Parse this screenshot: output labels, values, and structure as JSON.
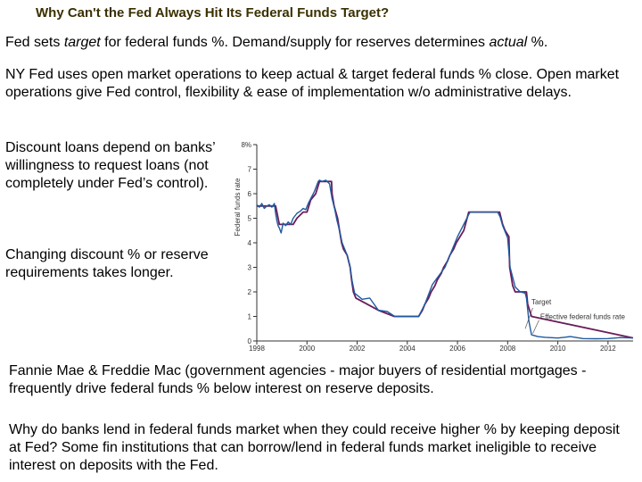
{
  "slide": {
    "title": "Why Can't the Fed Always Hit Its Federal Funds Target?",
    "p1": {
      "a": "Fed sets ",
      "b": "target",
      "c": " for federal funds %. Demand/supply for reserves determines ",
      "d": "actual",
      "e": " %."
    },
    "p2": "NY Fed uses open market operations to keep actual & target federal funds % close. Open market operations give Fed control, flexibility & ease of implementation w/o administrative delays.",
    "p3": "Discount loans depend on banks’ willingness to request loans (not completely under Fed’s control).",
    "p4": "Changing discount % or reserve requirements takes longer.",
    "p5": "Fannie Mae & Freddie Mac (government agencies - major buyers of residential mortgages - frequently drive federal funds % below interest on reserve deposits.",
    "p6": "Why do banks lend in federal funds market when they could receive higher % by keeping deposit at Fed? Some fin institutions that can borrow/lend in federal funds market ineligible to receive interest on deposits with the Fed."
  },
  "chart_data": {
    "type": "line",
    "ylabel": "Federal funds rate",
    "ylim": [
      0,
      8
    ],
    "xlim": [
      1998,
      2013
    ],
    "y_ticks": [
      {
        "v": 0,
        "label": "0"
      },
      {
        "v": 1,
        "label": "1"
      },
      {
        "v": 2,
        "label": "2"
      },
      {
        "v": 3,
        "label": "3"
      },
      {
        "v": 4,
        "label": "4"
      },
      {
        "v": 5,
        "label": "5"
      },
      {
        "v": 6,
        "label": "6"
      },
      {
        "v": 7,
        "label": "7"
      },
      {
        "v": 8,
        "label": "8%"
      }
    ],
    "x_ticks": [
      {
        "v": 1998,
        "label": "1998"
      },
      {
        "v": 2000,
        "label": "2000"
      },
      {
        "v": 2002,
        "label": "2002"
      },
      {
        "v": 2004,
        "label": "2004"
      },
      {
        "v": 2006,
        "label": "2006"
      },
      {
        "v": 2008,
        "label": "2008"
      },
      {
        "v": 2010,
        "label": "2010"
      },
      {
        "v": 2012,
        "label": "2012"
      }
    ],
    "grid": false,
    "series": [
      {
        "name": "Target",
        "color": "#6a1d5a",
        "x": [
          1998.0,
          1998.75,
          1998.8,
          1998.85,
          1998.9,
          1999.45,
          1999.6,
          1999.85,
          2000.0,
          2000.15,
          2000.35,
          2000.5,
          2000.98,
          2001.0,
          2001.08,
          2001.22,
          2001.3,
          2001.38,
          2001.45,
          2001.6,
          2001.72,
          2001.78,
          2001.85,
          2001.95,
          2002.85,
          2003.48,
          2004.45,
          2004.6,
          2004.7,
          2004.85,
          2004.95,
          2005.1,
          2005.2,
          2005.35,
          2005.45,
          2005.6,
          2005.7,
          2005.85,
          2005.95,
          2006.1,
          2006.25,
          2006.45,
          2007.68,
          2007.8,
          2007.9,
          2008.05,
          2008.08,
          2008.2,
          2008.3,
          2008.75,
          2008.8,
          2008.95,
          2013.0
        ],
        "values": [
          5.5,
          5.5,
          5.25,
          5.0,
          4.75,
          4.75,
          5.0,
          5.25,
          5.25,
          5.75,
          6.0,
          6.5,
          6.5,
          6.0,
          5.5,
          5.0,
          4.5,
          4.0,
          3.75,
          3.5,
          3.0,
          2.5,
          2.0,
          1.75,
          1.25,
          1.0,
          1.0,
          1.25,
          1.5,
          1.75,
          2.0,
          2.25,
          2.5,
          2.75,
          3.0,
          3.25,
          3.5,
          3.75,
          4.0,
          4.25,
          4.5,
          5.25,
          5.25,
          4.75,
          4.5,
          4.25,
          3.0,
          2.25,
          2.0,
          2.0,
          1.5,
          1.0,
          0.125
        ]
      },
      {
        "name": "Effective federal funds rate",
        "color": "#1f5aa0",
        "x": [
          1998.0,
          1998.1,
          1998.2,
          1998.3,
          1998.4,
          1998.5,
          1998.6,
          1998.7,
          1998.75,
          1998.8,
          1998.85,
          1998.9,
          1998.97,
          1999.05,
          1999.15,
          1999.25,
          1999.35,
          1999.45,
          1999.6,
          1999.75,
          1999.85,
          1999.95,
          2000.05,
          2000.15,
          2000.3,
          2000.45,
          2000.5,
          2000.6,
          2000.75,
          2000.9,
          2001.0,
          2001.1,
          2001.2,
          2001.3,
          2001.4,
          2001.5,
          2001.6,
          2001.72,
          2001.8,
          2001.9,
          2002.2,
          2002.5,
          2002.85,
          2003.2,
          2003.5,
          2004.0,
          2004.45,
          2004.7,
          2005.0,
          2005.5,
          2006.0,
          2006.5,
          2007.0,
          2007.6,
          2007.7,
          2007.8,
          2008.0,
          2008.1,
          2008.3,
          2008.5,
          2008.7,
          2008.75,
          2008.85,
          2008.95,
          2009.2,
          2009.5,
          2010.0,
          2010.5,
          2011.0,
          2011.5,
          2012.0,
          2012.5,
          2013.0
        ],
        "values": [
          5.55,
          5.45,
          5.6,
          5.4,
          5.5,
          5.55,
          5.45,
          5.6,
          5.2,
          4.9,
          4.7,
          4.6,
          4.4,
          4.8,
          4.7,
          4.85,
          4.75,
          5.0,
          5.2,
          5.3,
          5.4,
          5.35,
          5.6,
          5.8,
          6.1,
          6.5,
          6.55,
          6.5,
          6.55,
          6.4,
          5.8,
          5.4,
          4.9,
          4.5,
          4.0,
          3.75,
          3.5,
          3.0,
          2.45,
          1.95,
          1.7,
          1.75,
          1.25,
          1.2,
          1.0,
          1.0,
          1.0,
          1.5,
          2.3,
          3.0,
          4.25,
          5.25,
          5.25,
          5.25,
          5.05,
          4.7,
          4.2,
          3.0,
          2.2,
          2.0,
          1.95,
          1.75,
          0.8,
          0.25,
          0.18,
          0.15,
          0.12,
          0.18,
          0.1,
          0.09,
          0.1,
          0.14,
          0.12
        ]
      }
    ],
    "annotations": [
      {
        "text": "Target"
      },
      {
        "text": "Effective federal funds rate"
      }
    ]
  }
}
